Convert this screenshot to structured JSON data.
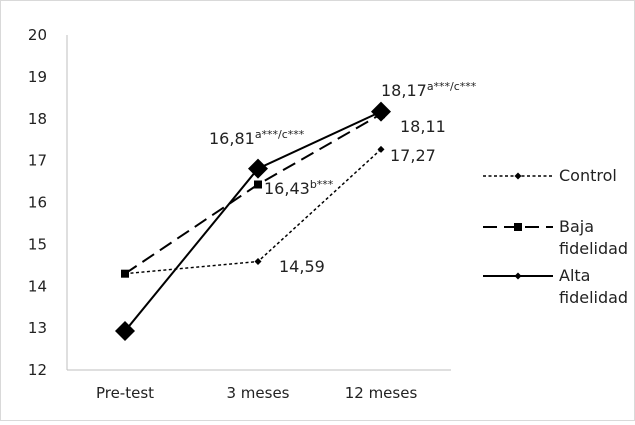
{
  "chart_data": {
    "type": "line",
    "title": "",
    "xlabel": "",
    "ylabel": "",
    "categories": [
      "Pre-test",
      "3 meses",
      "12 meses"
    ],
    "ylim": [
      12,
      20
    ],
    "yticks": [
      "12",
      "13",
      "14",
      "15",
      "16",
      "17",
      "18",
      "19",
      "20"
    ],
    "grid": false,
    "legend_position": "right",
    "series": [
      {
        "name": "Control",
        "style": "dotted",
        "marker": "small-diamond",
        "color": "#000000",
        "values": [
          14.3,
          14.59,
          17.27
        ],
        "labels": [
          null,
          {
            "main": "14,59",
            "sup": ""
          },
          {
            "main": "17,27",
            "sup": ""
          }
        ]
      },
      {
        "name": "Baja fidelidad",
        "style": "dashed",
        "marker": "square",
        "color": "#000000",
        "values": [
          14.3,
          16.43,
          18.11
        ],
        "labels": [
          null,
          {
            "main": "16,43",
            "sup": "b***"
          },
          {
            "main": "18,11",
            "sup": ""
          }
        ]
      },
      {
        "name": "Alta fidelidad",
        "style": "solid",
        "marker": "large-diamond",
        "color": "#000000",
        "values": [
          12.93,
          16.81,
          18.17
        ],
        "labels": [
          null,
          {
            "main": "16,81",
            "sup": "a***/c***"
          },
          {
            "main": "18,17",
            "sup": "a***/c***"
          }
        ]
      }
    ]
  }
}
